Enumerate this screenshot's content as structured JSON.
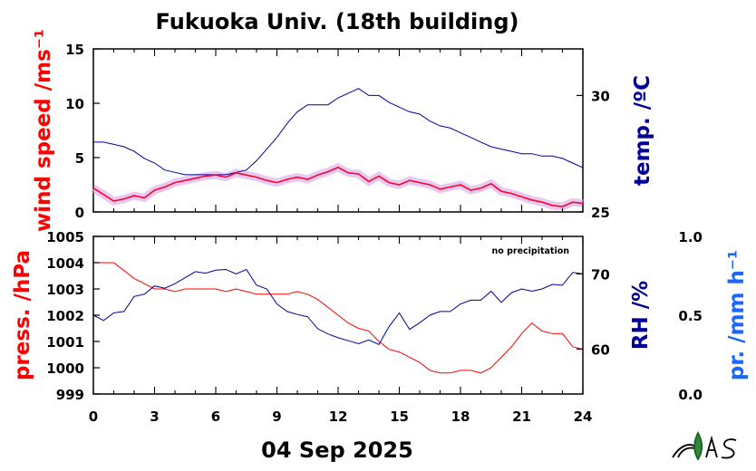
{
  "colors": {
    "wind": "#ff0033",
    "wind_band": "#d9a6e6",
    "temp": "#000099",
    "press": "#ff0000",
    "rh": "#000099",
    "precip": "#1a66ff",
    "frame": "#000000"
  },
  "chart_data": [
    {
      "type": "line",
      "title": "Fukuoka Univ. (18th building)",
      "x_ticks": [
        "0",
        "3",
        "6",
        "9",
        "12",
        "15",
        "18",
        "21",
        "24"
      ],
      "xlim": [
        0,
        24
      ],
      "grid": false,
      "left_axis": {
        "label": "wind speed /ms⁻¹",
        "ylim": [
          0,
          15
        ],
        "ticks": [
          "0",
          "5",
          "10",
          "15"
        ]
      },
      "right_axis": {
        "label": "temp. /ºC",
        "ylim": [
          25,
          32
        ],
        "ticks": [
          "25",
          "30"
        ]
      },
      "series": [
        {
          "axis": "left",
          "x": [
            0,
            0.5,
            1,
            1.5,
            2,
            2.5,
            3,
            3.5,
            4,
            4.5,
            5,
            5.5,
            6,
            6.5,
            7,
            7.5,
            8,
            8.5,
            9,
            9.5,
            10,
            10.5,
            11,
            11.5,
            12,
            12.5,
            13,
            13.5,
            14,
            14.5,
            15,
            15.5,
            16,
            16.5,
            17,
            17.5,
            18,
            18.5,
            19,
            19.5,
            20,
            20.5,
            21,
            21.5,
            22,
            22.5,
            23,
            23.5,
            24
          ],
          "y": [
            2.2,
            1.6,
            1.0,
            1.2,
            1.5,
            1.3,
            2.0,
            2.3,
            2.7,
            2.9,
            3.1,
            3.3,
            3.4,
            3.2,
            3.6,
            3.4,
            3.2,
            2.9,
            2.7,
            3.0,
            3.2,
            3.0,
            3.4,
            3.7,
            4.1,
            3.6,
            3.5,
            2.8,
            3.3,
            2.7,
            2.5,
            2.9,
            2.7,
            2.5,
            2.1,
            2.3,
            2.5,
            2.0,
            2.2,
            2.6,
            1.9,
            1.7,
            1.4,
            1.1,
            0.9,
            0.6,
            0.5,
            0.9,
            0.8
          ]
        },
        {
          "axis": "right",
          "x": [
            0,
            0.5,
            1,
            1.5,
            2,
            2.5,
            3,
            3.5,
            4,
            4.5,
            5,
            5.5,
            6,
            6.5,
            7,
            7.5,
            8,
            8.5,
            9,
            9.5,
            10,
            10.5,
            11,
            11.5,
            12,
            12.5,
            13,
            13.5,
            14,
            14.5,
            15,
            15.5,
            16,
            16.5,
            17,
            17.5,
            18,
            18.5,
            19,
            19.5,
            20,
            20.5,
            21,
            21.5,
            22,
            22.5,
            23,
            23.5,
            24
          ],
          "y": [
            28.0,
            28.0,
            27.9,
            27.8,
            27.6,
            27.3,
            27.1,
            26.8,
            26.7,
            26.6,
            26.6,
            26.6,
            26.6,
            26.6,
            26.7,
            26.8,
            27.2,
            27.7,
            28.2,
            28.8,
            29.3,
            29.6,
            29.6,
            29.6,
            29.9,
            30.1,
            30.3,
            30.0,
            30.0,
            29.7,
            29.5,
            29.3,
            29.2,
            28.9,
            28.7,
            28.6,
            28.4,
            28.2,
            28.0,
            27.8,
            27.7,
            27.6,
            27.5,
            27.5,
            27.4,
            27.4,
            27.3,
            27.1,
            26.9
          ]
        }
      ]
    },
    {
      "type": "line",
      "x_ticks": [
        "0",
        "3",
        "6",
        "9",
        "12",
        "15",
        "18",
        "21",
        "24"
      ],
      "xlabel": "04 Sep 2025",
      "xlim": [
        0,
        24
      ],
      "grid": false,
      "annotation": "no precipitation",
      "left_axis": {
        "label": "press. /hPa",
        "ylim": [
          999,
          1005
        ],
        "ticks": [
          "999",
          "1000",
          "1001",
          "1002",
          "1003",
          "1004",
          "1005"
        ]
      },
      "right_axis": {
        "label": "RH /%",
        "ylim": [
          54,
          75
        ],
        "ticks": [
          "60",
          "70"
        ]
      },
      "precip_axis": {
        "label": "pr. /mm h⁻¹",
        "ylim": [
          0,
          1
        ],
        "ticks": [
          "0.0",
          "0.5",
          "1.0"
        ]
      },
      "series": [
        {
          "axis": "left",
          "x": [
            0,
            0.5,
            1,
            1.5,
            2,
            2.5,
            3,
            3.5,
            4,
            4.5,
            5,
            5.5,
            6,
            6.5,
            7,
            7.5,
            8,
            8.5,
            9,
            9.5,
            10,
            10.5,
            11,
            11.5,
            12,
            12.5,
            13,
            13.5,
            14,
            14.5,
            15,
            15.5,
            16,
            16.5,
            17,
            17.5,
            18,
            18.5,
            19,
            19.5,
            20,
            20.5,
            21,
            21.5,
            22,
            22.5,
            23,
            23.5,
            24
          ],
          "y": [
            1004.0,
            1004.0,
            1004.0,
            1003.7,
            1003.4,
            1003.2,
            1003.0,
            1003.0,
            1002.9,
            1003.0,
            1003.0,
            1003.0,
            1003.0,
            1002.9,
            1003.0,
            1002.9,
            1002.8,
            1002.8,
            1002.8,
            1002.8,
            1002.9,
            1002.8,
            1002.6,
            1002.3,
            1002.0,
            1001.7,
            1001.5,
            1001.4,
            1001.0,
            1000.7,
            1000.6,
            1000.4,
            1000.2,
            999.9,
            999.8,
            999.8,
            999.9,
            999.9,
            999.8,
            1000.0,
            1000.4,
            1000.8,
            1001.3,
            1001.7,
            1001.4,
            1001.3,
            1001.3,
            1000.8,
            1000.7
          ]
        },
        {
          "axis": "right",
          "x": [
            0,
            0.5,
            1,
            1.5,
            2,
            2.5,
            3,
            3.5,
            4,
            4.5,
            5,
            5.5,
            6,
            6.5,
            7,
            7.5,
            8,
            8.5,
            9,
            9.5,
            10,
            10.5,
            11,
            11.5,
            12,
            12.5,
            13,
            13.5,
            14,
            14.5,
            15,
            15.5,
            16,
            16.5,
            17,
            17.5,
            18,
            18.5,
            19,
            19.5,
            20,
            20.5,
            21,
            21.5,
            22,
            22.5,
            23,
            23.5,
            24
          ],
          "y": [
            64.5,
            63.8,
            64.8,
            65.0,
            67.0,
            67.3,
            68.4,
            68.1,
            68.7,
            69.5,
            70.3,
            70.1,
            70.5,
            70.6,
            70.0,
            70.6,
            68.5,
            68.0,
            66.0,
            65.0,
            64.6,
            64.3,
            62.7,
            62.0,
            61.5,
            61.1,
            60.7,
            61.2,
            60.6,
            63.0,
            64.8,
            62.6,
            63.5,
            64.5,
            65.0,
            65.0,
            66.0,
            66.5,
            66.5,
            67.7,
            66.2,
            67.5,
            68.0,
            67.7,
            68.0,
            68.6,
            68.5,
            70.2,
            70.0
          ]
        },
        {
          "axis": "precip",
          "name": "",
          "x": [
            0,
            24
          ],
          "y": [
            0,
            0
          ]
        }
      ]
    }
  ]
}
